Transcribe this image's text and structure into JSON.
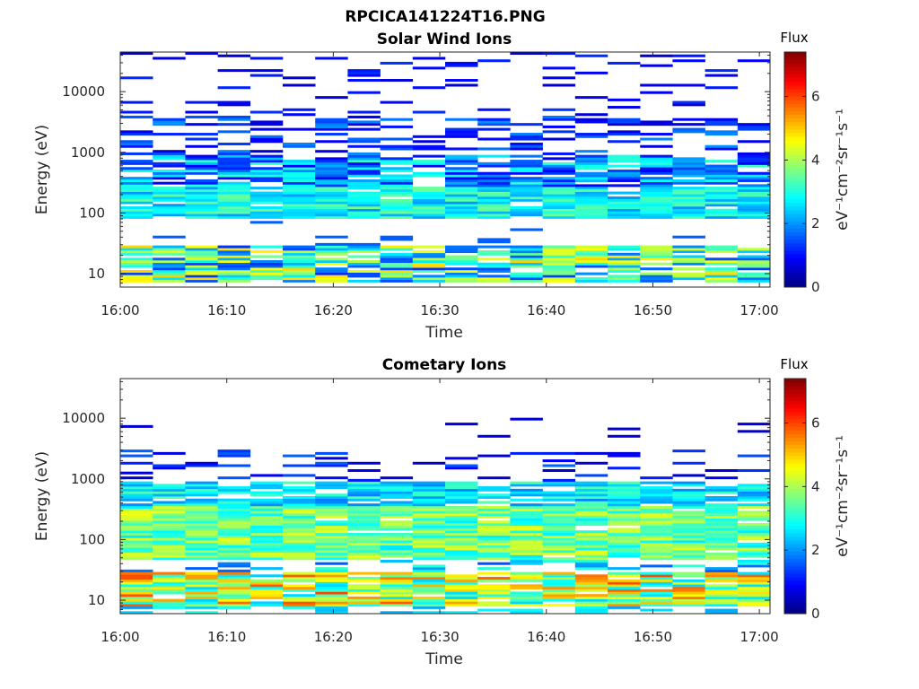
{
  "figure": {
    "title": "RPCICA141224T16.PNG"
  },
  "chart_data": [
    {
      "type": "heatmap",
      "title": "Solar Wind Ions",
      "xlabel": "Time",
      "ylabel": "Energy (eV)",
      "x_ticks": [
        "16:00",
        "16:10",
        "16:20",
        "16:30",
        "16:40",
        "16:50",
        "17:00"
      ],
      "x_tick_minutes": [
        0,
        10,
        20,
        30,
        40,
        50,
        60
      ],
      "y_ticks": [
        "10",
        "100",
        "1000",
        "10000"
      ],
      "y_tick_values": [
        10,
        100,
        1000,
        10000
      ],
      "y_scale": "log",
      "ylim": [
        6,
        45000
      ],
      "xlim_minutes": [
        0,
        61
      ],
      "n_scans": 20,
      "seed": 7,
      "profile": "solar_wind",
      "colorbar": {
        "label": "Flux",
        "unit_label": "eV⁻¹cm⁻²sr⁻¹s⁻¹",
        "ticks": [
          "0",
          "2",
          "4",
          "6"
        ],
        "tick_values": [
          0,
          2,
          4,
          6
        ],
        "range": [
          0,
          7.4
        ],
        "colormap": "jet"
      }
    },
    {
      "type": "heatmap",
      "title": "Cometary Ions",
      "xlabel": "Time",
      "ylabel": "Energy (eV)",
      "x_ticks": [
        "16:00",
        "16:10",
        "16:20",
        "16:30",
        "16:40",
        "16:50",
        "17:00"
      ],
      "x_tick_minutes": [
        0,
        10,
        20,
        30,
        40,
        50,
        60
      ],
      "y_ticks": [
        "10",
        "100",
        "1000",
        "10000"
      ],
      "y_tick_values": [
        10,
        100,
        1000,
        10000
      ],
      "y_scale": "log",
      "ylim": [
        6,
        45000
      ],
      "xlim_minutes": [
        0,
        61
      ],
      "n_scans": 20,
      "seed": 13,
      "profile": "cometary",
      "colorbar": {
        "label": "Flux",
        "unit_label": "eV⁻¹cm⁻²sr⁻¹s⁻¹",
        "ticks": [
          "0",
          "2",
          "4",
          "6"
        ],
        "tick_values": [
          0,
          2,
          4,
          6
        ],
        "range": [
          0,
          7.4
        ],
        "colormap": "jet"
      }
    }
  ]
}
